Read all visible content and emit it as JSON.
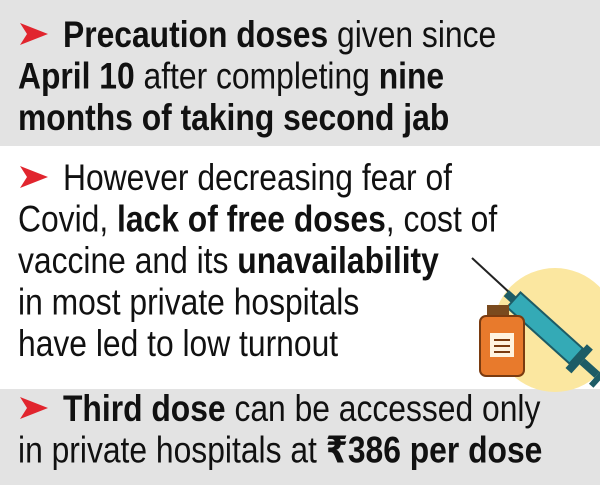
{
  "bullets": [
    {
      "lines": [
        [
          {
            "text": "Precaution doses",
            "bold": true
          },
          {
            "text": " given since",
            "bold": false
          }
        ],
        [
          {
            "text": "April 10",
            "bold": true
          },
          {
            "text": " after completing ",
            "bold": false
          },
          {
            "text": "nine",
            "bold": true
          }
        ],
        [
          {
            "text": "months of taking second jab",
            "bold": true
          }
        ]
      ]
    },
    {
      "lines": [
        [
          {
            "text": "However decreasing fear of",
            "bold": false
          }
        ],
        [
          {
            "text": "Covid, ",
            "bold": false
          },
          {
            "text": "lack of free doses",
            "bold": true
          },
          {
            "text": ", cost of",
            "bold": false
          }
        ],
        [
          {
            "text": "vaccine and its ",
            "bold": false
          },
          {
            "text": "unavailability",
            "bold": true
          }
        ],
        [
          {
            "text": "in most private hospitals",
            "bold": false
          }
        ],
        [
          {
            "text": "have led to low turnout",
            "bold": false
          }
        ]
      ]
    },
    {
      "lines": [
        [
          {
            "text": "Third dose",
            "bold": true
          },
          {
            "text": " can be accessed only",
            "bold": false
          }
        ],
        [
          {
            "text": "in private hospitals at ",
            "bold": false
          },
          {
            "text": "₹386 per dose",
            "bold": true
          }
        ]
      ]
    }
  ]
}
